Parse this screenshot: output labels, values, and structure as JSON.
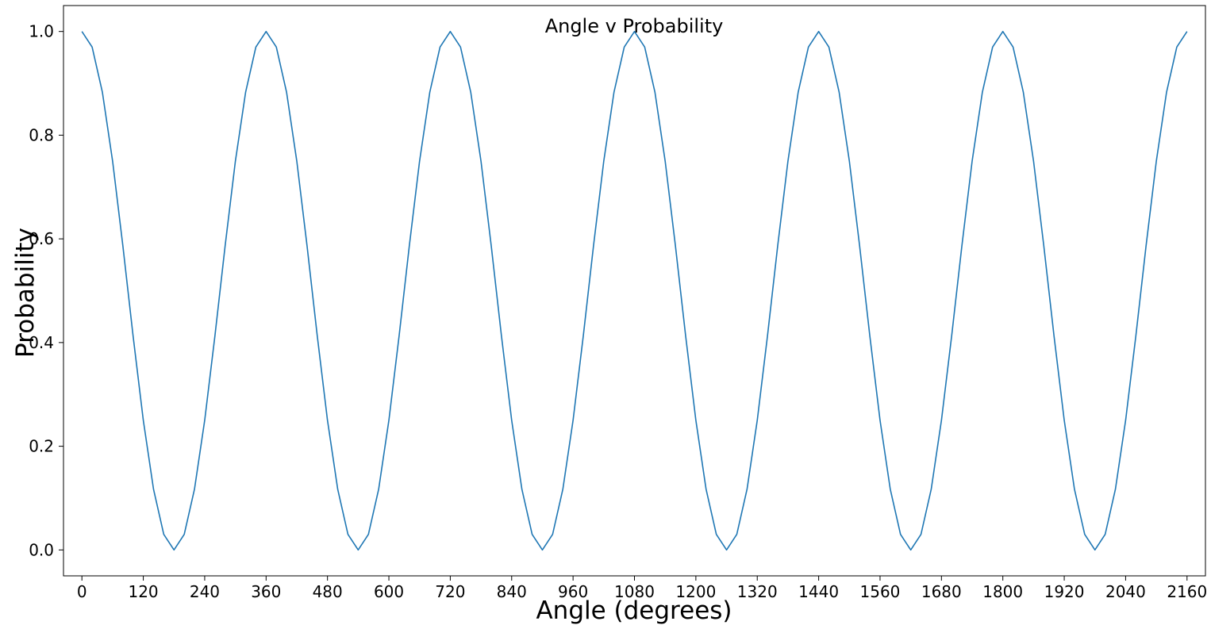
{
  "chart_data": {
    "type": "line",
    "title": "Angle v Probability",
    "xlabel": "Angle (degrees)",
    "ylabel": "Probability",
    "xlim": [
      -36,
      2196
    ],
    "ylim": [
      -0.05,
      1.05
    ],
    "grid": false,
    "legend": "none",
    "x_ticks": [
      0,
      120,
      240,
      360,
      480,
      600,
      720,
      840,
      960,
      1080,
      1200,
      1320,
      1440,
      1560,
      1680,
      1800,
      1920,
      2040,
      2160
    ],
    "x_tick_labels": [
      "0",
      "120",
      "240",
      "360",
      "480",
      "600",
      "720",
      "840",
      "960",
      "1080",
      "1200",
      "1320",
      "1440",
      "1560",
      "1680",
      "1800",
      "1920",
      "2040",
      "2160"
    ],
    "y_ticks": [
      0.0,
      0.2,
      0.4,
      0.6,
      0.8,
      1.0
    ],
    "y_tick_labels": [
      "0.0",
      "0.2",
      "0.4",
      "0.6",
      "0.8",
      "1.0"
    ],
    "series": [
      {
        "name": "probability",
        "color": "#1f77b4",
        "x": [
          0,
          20,
          40,
          60,
          80,
          100,
          120,
          140,
          160,
          180,
          200,
          220,
          240,
          260,
          280,
          300,
          320,
          340,
          360,
          380,
          400,
          420,
          440,
          460,
          480,
          500,
          520,
          540,
          560,
          580,
          600,
          620,
          640,
          660,
          680,
          700,
          720,
          740,
          760,
          780,
          800,
          820,
          840,
          860,
          880,
          900,
          920,
          940,
          960,
          980,
          1000,
          1020,
          1040,
          1060,
          1080,
          1100,
          1120,
          1140,
          1160,
          1180,
          1200,
          1220,
          1240,
          1260,
          1280,
          1300,
          1320,
          1340,
          1360,
          1380,
          1400,
          1420,
          1440,
          1460,
          1480,
          1500,
          1520,
          1540,
          1560,
          1580,
          1600,
          1620,
          1640,
          1660,
          1680,
          1700,
          1720,
          1740,
          1760,
          1780,
          1800,
          1820,
          1840,
          1860,
          1880,
          1900,
          1920,
          1940,
          1960,
          1980,
          2000,
          2020,
          2040,
          2060,
          2080,
          2100,
          2120,
          2140,
          2160
        ],
        "values": [
          1.0,
          0.97,
          0.883,
          0.75,
          0.587,
          0.413,
          0.25,
          0.117,
          0.03,
          0.0,
          0.03,
          0.117,
          0.25,
          0.413,
          0.587,
          0.75,
          0.883,
          0.97,
          1.0,
          0.97,
          0.883,
          0.75,
          0.587,
          0.413,
          0.25,
          0.117,
          0.03,
          0.0,
          0.03,
          0.117,
          0.25,
          0.413,
          0.587,
          0.75,
          0.883,
          0.97,
          1.0,
          0.97,
          0.883,
          0.75,
          0.587,
          0.413,
          0.25,
          0.117,
          0.03,
          0.0,
          0.03,
          0.117,
          0.25,
          0.413,
          0.587,
          0.75,
          0.883,
          0.97,
          1.0,
          0.97,
          0.883,
          0.75,
          0.587,
          0.413,
          0.25,
          0.117,
          0.03,
          0.0,
          0.03,
          0.117,
          0.25,
          0.413,
          0.587,
          0.75,
          0.883,
          0.97,
          1.0,
          0.97,
          0.883,
          0.75,
          0.587,
          0.413,
          0.25,
          0.117,
          0.03,
          0.0,
          0.03,
          0.117,
          0.25,
          0.413,
          0.587,
          0.75,
          0.883,
          0.97,
          1.0,
          0.97,
          0.883,
          0.75,
          0.587,
          0.413,
          0.25,
          0.117,
          0.03,
          0.0,
          0.03,
          0.117,
          0.25,
          0.413,
          0.587,
          0.75,
          0.883,
          0.97,
          1.0
        ]
      }
    ]
  }
}
